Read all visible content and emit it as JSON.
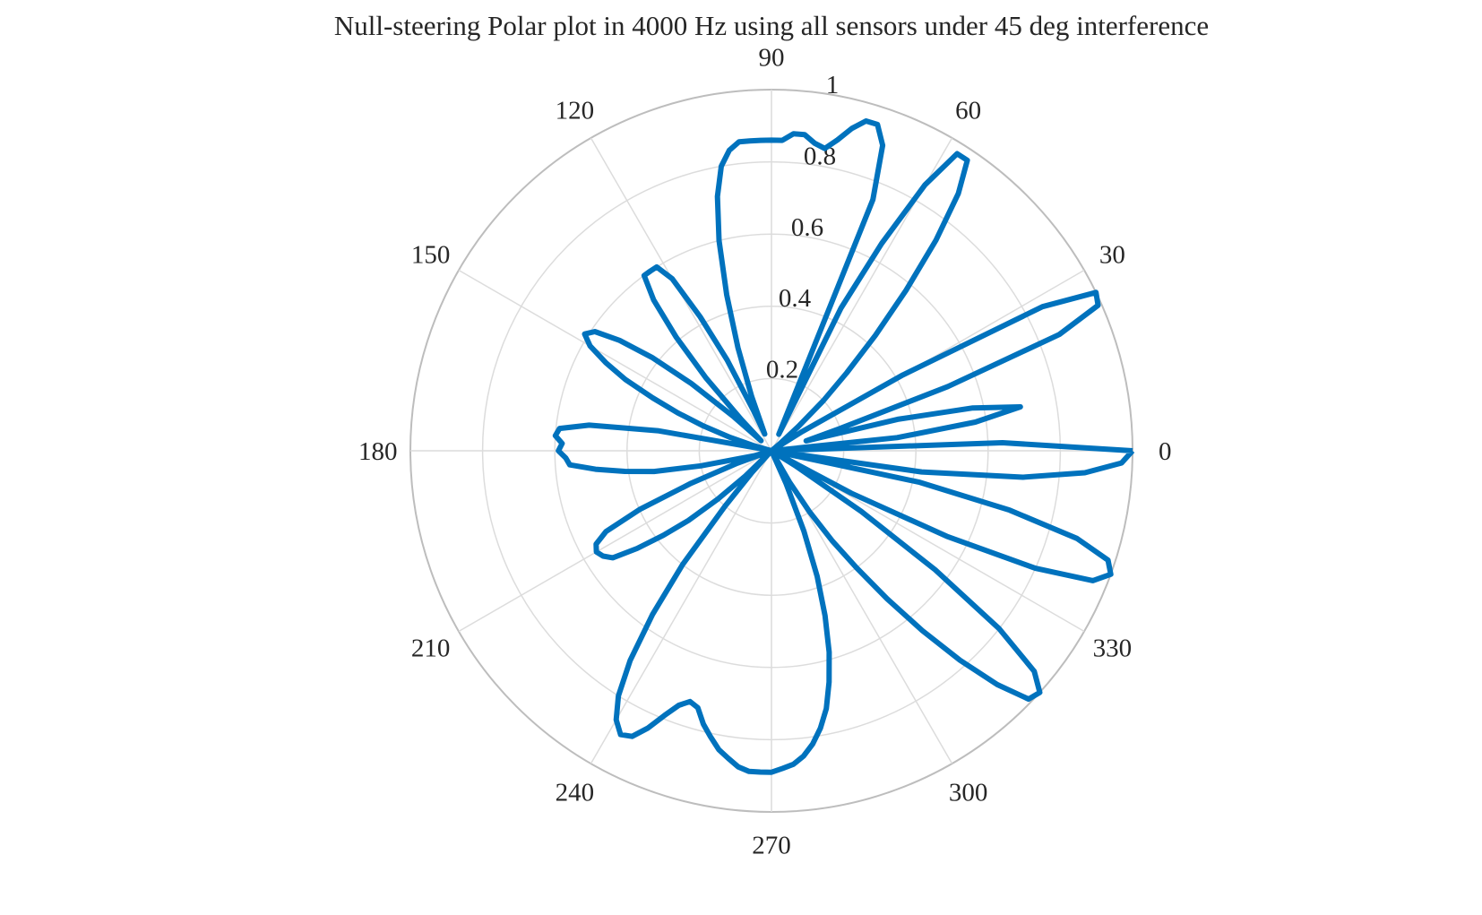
{
  "chart_data": {
    "type": "line",
    "subtype": "polar",
    "title": "Null-steering Polar plot in 4000 Hz using all sensors under 45 deg interference",
    "angle_ticks": [
      0,
      30,
      60,
      90,
      120,
      150,
      180,
      210,
      240,
      270,
      300,
      330
    ],
    "angle_tick_labels": [
      "0",
      "30",
      "60",
      "90",
      "120",
      "150",
      "180",
      "210",
      "240",
      "270",
      "300",
      "330"
    ],
    "radial_ticks": [
      0.2,
      0.4,
      0.6,
      0.8,
      1
    ],
    "radial_tick_labels": [
      "0.2",
      "0.4",
      "0.6",
      "0.8",
      "1"
    ],
    "rlim": [
      0,
      1
    ],
    "grid": true,
    "series_color": "#0072BD",
    "grid_color": "#DCDCDC",
    "axis_color": "#BDBDBD",
    "series": [
      {
        "theta_deg": [
          0,
          2,
          4,
          6,
          8,
          10,
          12,
          14,
          16,
          18,
          20,
          22,
          24,
          26,
          28,
          30,
          32,
          34,
          36,
          38,
          40,
          42,
          44,
          46,
          48,
          50,
          52,
          54,
          56,
          58,
          60,
          62,
          64,
          66,
          68,
          70,
          72,
          74,
          76,
          78,
          80,
          82,
          84,
          86,
          88,
          90,
          92,
          94,
          96,
          98,
          100,
          102,
          104,
          106,
          108,
          110,
          112,
          114,
          116,
          118,
          120,
          122,
          124,
          126,
          128,
          130,
          132,
          134,
          136,
          138,
          140,
          142,
          144,
          146,
          148,
          150,
          152,
          154,
          156,
          158,
          160,
          162,
          164,
          166,
          168,
          170,
          172,
          174,
          176,
          178,
          180,
          182,
          184,
          186,
          188,
          190,
          192,
          194,
          196,
          198,
          200,
          202,
          204,
          206,
          208,
          210,
          212,
          214,
          216,
          218,
          220,
          222,
          224,
          226,
          228,
          230,
          232,
          234,
          236,
          238,
          240,
          242,
          244,
          246,
          248,
          250,
          252,
          254,
          256,
          258,
          260,
          262,
          264,
          266,
          268,
          270,
          272,
          274,
          276,
          278,
          280,
          282,
          284,
          286,
          288,
          290,
          292,
          294,
          296,
          298,
          300,
          302,
          304,
          306,
          308,
          310,
          312,
          314,
          316,
          318,
          320,
          322,
          324,
          326,
          328,
          330,
          332,
          334,
          336,
          338,
          340,
          342,
          344,
          346,
          348,
          350,
          352,
          354,
          356,
          358,
          360
        ],
        "r": [
          1.0,
          0.64,
          0.0,
          0.35,
          0.57,
          0.7,
          0.57,
          0.36,
          0.1,
          0.2,
          0.52,
          0.86,
          0.99,
          1.0,
          0.85,
          0.42,
          0.1,
          0.0,
          0.0,
          0.0,
          0.03,
          0.1,
          0.2,
          0.3,
          0.43,
          0.58,
          0.74,
          0.88,
          0.97,
          0.97,
          0.85,
          0.65,
          0.44,
          0.05,
          0.75,
          0.9,
          0.95,
          0.95,
          0.92,
          0.88,
          0.85,
          0.86,
          0.88,
          0.88,
          0.86,
          0.86,
          0.86,
          0.86,
          0.86,
          0.84,
          0.8,
          0.72,
          0.6,
          0.45,
          0.3,
          0.16,
          0.05,
          0.12,
          0.28,
          0.42,
          0.55,
          0.6,
          0.6,
          0.6,
          0.53,
          0.41,
          0.27,
          0.12,
          0.04,
          0.14,
          0.29,
          0.42,
          0.52,
          0.59,
          0.61,
          0.58,
          0.52,
          0.45,
          0.36,
          0.28,
          0.2,
          0.12,
          0.05,
          0.0,
          0.02,
          0.32,
          0.51,
          0.59,
          0.6,
          0.58,
          0.59,
          0.57,
          0.56,
          0.49,
          0.41,
          0.33,
          0.2,
          0.08,
          0.05,
          0.0,
          0.1,
          0.24,
          0.4,
          0.51,
          0.55,
          0.56,
          0.55,
          0.53,
          0.46,
          0.38,
          0.3,
          0.2,
          0.1,
          0.0,
          0.08,
          0.2,
          0.4,
          0.56,
          0.7,
          0.8,
          0.86,
          0.89,
          0.88,
          0.84,
          0.79,
          0.75,
          0.73,
          0.74,
          0.78,
          0.81,
          0.84,
          0.86,
          0.88,
          0.89,
          0.89,
          0.89,
          0.88,
          0.87,
          0.85,
          0.82,
          0.78,
          0.73,
          0.66,
          0.58,
          0.48,
          0.37,
          0.24,
          0.1,
          0.0,
          0.0,
          0.1,
          0.2,
          0.3,
          0.4,
          0.52,
          0.65,
          0.78,
          0.9,
          0.99,
          1.0,
          0.95,
          0.8,
          0.56,
          0.3,
          0.08,
          0.0,
          0.25,
          0.54,
          0.8,
          0.96,
          1.0,
          0.98,
          0.88,
          0.68,
          0.42,
          0.0,
          0.42,
          0.7,
          0.87,
          0.97,
          1.0
        ]
      }
    ]
  }
}
